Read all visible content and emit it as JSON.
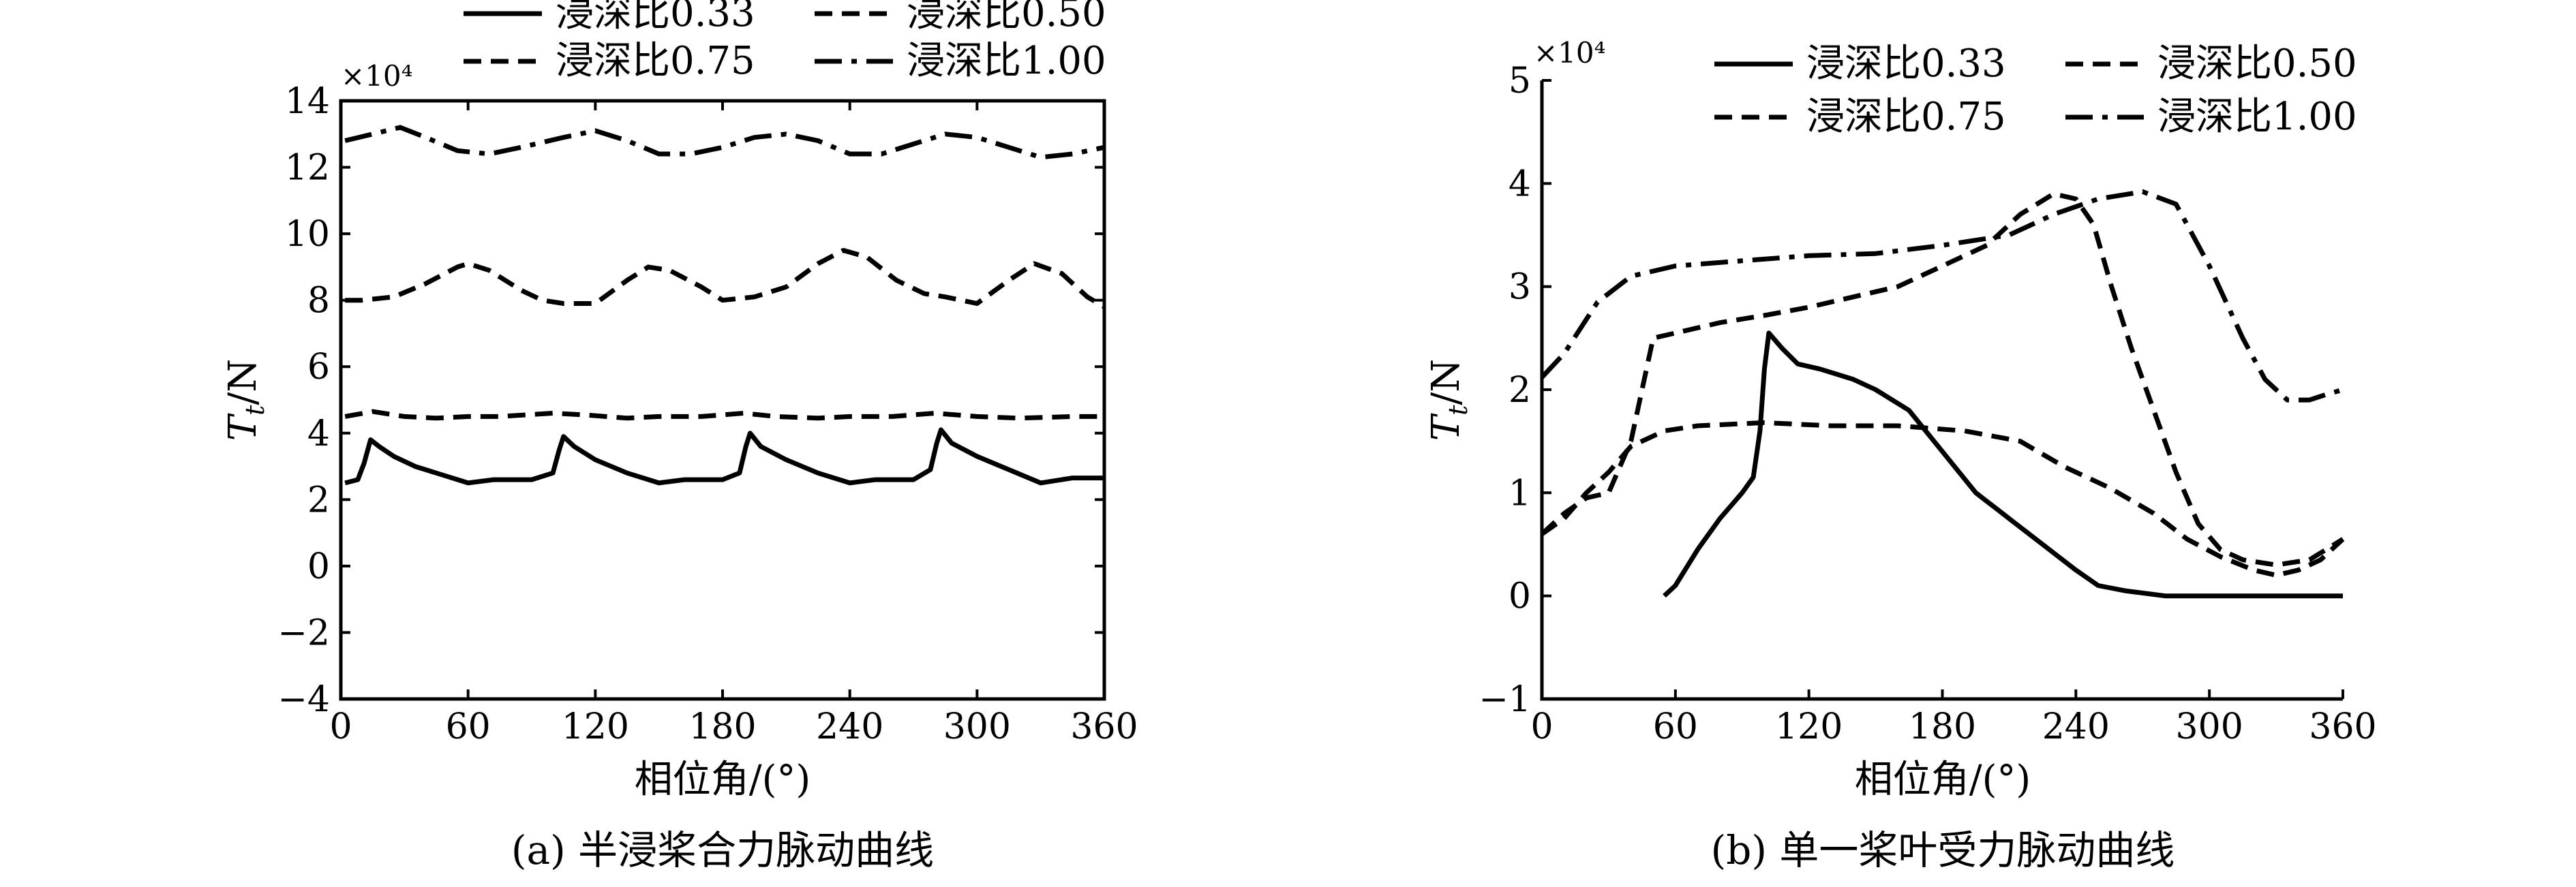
{
  "chart_data": [
    {
      "type": "line",
      "caption": "(a) 半浸桨合力脉动曲线",
      "xlabel": "相位角/(°)",
      "ylabel_main": "T",
      "ylabel_sub": "t",
      "ylabel_unit": "/N",
      "exponent": "×10⁴",
      "xlim": [
        0,
        360
      ],
      "ylim": [
        -4,
        14
      ],
      "xticks": [
        "0",
        "60",
        "120",
        "180",
        "240",
        "300",
        "360"
      ],
      "yticks": [
        "−4",
        "−2",
        "0",
        "2",
        "4",
        "6",
        "8",
        "10",
        "12",
        "14"
      ],
      "legend_position": "top",
      "series": [
        {
          "name": "浸深比0.33",
          "style": "solid",
          "points": [
            [
              2,
              2.5
            ],
            [
              8,
              2.6
            ],
            [
              11,
              3.1
            ],
            [
              14,
              3.8
            ],
            [
              18,
              3.6
            ],
            [
              25,
              3.3
            ],
            [
              35,
              3.0
            ],
            [
              50,
              2.7
            ],
            [
              60,
              2.5
            ],
            [
              72,
              2.6
            ],
            [
              90,
              2.6
            ],
            [
              100,
              2.8
            ],
            [
              103,
              3.5
            ],
            [
              105,
              3.9
            ],
            [
              110,
              3.6
            ],
            [
              120,
              3.2
            ],
            [
              135,
              2.8
            ],
            [
              150,
              2.5
            ],
            [
              162,
              2.6
            ],
            [
              180,
              2.6
            ],
            [
              188,
              2.8
            ],
            [
              191,
              3.6
            ],
            [
              193,
              4.0
            ],
            [
              198,
              3.6
            ],
            [
              210,
              3.2
            ],
            [
              225,
              2.8
            ],
            [
              240,
              2.5
            ],
            [
              252,
              2.6
            ],
            [
              270,
              2.6
            ],
            [
              278,
              2.9
            ],
            [
              281,
              3.7
            ],
            [
              283,
              4.1
            ],
            [
              288,
              3.7
            ],
            [
              300,
              3.3
            ],
            [
              315,
              2.9
            ],
            [
              330,
              2.5
            ],
            [
              345,
              2.65
            ],
            [
              360,
              2.65
            ]
          ]
        },
        {
          "name": "浸深比0.50",
          "style": "dashed",
          "points": [
            [
              2,
              4.5
            ],
            [
              15,
              4.65
            ],
            [
              30,
              4.5
            ],
            [
              45,
              4.45
            ],
            [
              60,
              4.5
            ],
            [
              75,
              4.5
            ],
            [
              100,
              4.6
            ],
            [
              115,
              4.55
            ],
            [
              135,
              4.45
            ],
            [
              150,
              4.5
            ],
            [
              170,
              4.5
            ],
            [
              190,
              4.6
            ],
            [
              205,
              4.5
            ],
            [
              225,
              4.45
            ],
            [
              240,
              4.5
            ],
            [
              260,
              4.5
            ],
            [
              280,
              4.6
            ],
            [
              300,
              4.5
            ],
            [
              320,
              4.45
            ],
            [
              345,
              4.5
            ],
            [
              360,
              4.5
            ]
          ]
        },
        {
          "name": "浸深比0.75",
          "style": "dashed",
          "points": [
            [
              2,
              8.0
            ],
            [
              10,
              8.0
            ],
            [
              25,
              8.1
            ],
            [
              40,
              8.5
            ],
            [
              55,
              9.0
            ],
            [
              60,
              9.1
            ],
            [
              70,
              8.9
            ],
            [
              85,
              8.3
            ],
            [
              95,
              8.0
            ],
            [
              105,
              7.9
            ],
            [
              120,
              7.9
            ],
            [
              135,
              8.6
            ],
            [
              145,
              9.0
            ],
            [
              155,
              8.9
            ],
            [
              170,
              8.4
            ],
            [
              180,
              8.0
            ],
            [
              195,
              8.1
            ],
            [
              210,
              8.4
            ],
            [
              225,
              9.1
            ],
            [
              237,
              9.5
            ],
            [
              248,
              9.3
            ],
            [
              262,
              8.6
            ],
            [
              275,
              8.2
            ],
            [
              285,
              8.1
            ],
            [
              300,
              7.9
            ],
            [
              315,
              8.6
            ],
            [
              327,
              9.1
            ],
            [
              340,
              8.8
            ],
            [
              352,
              8.1
            ],
            [
              360,
              7.8
            ]
          ]
        },
        {
          "name": "浸深比1.00",
          "style": "dash-dot",
          "points": [
            [
              2,
              12.8
            ],
            [
              15,
              13.0
            ],
            [
              28,
              13.2
            ],
            [
              40,
              12.9
            ],
            [
              55,
              12.5
            ],
            [
              70,
              12.4
            ],
            [
              85,
              12.6
            ],
            [
              105,
              12.9
            ],
            [
              120,
              13.1
            ],
            [
              135,
              12.8
            ],
            [
              150,
              12.4
            ],
            [
              165,
              12.4
            ],
            [
              180,
              12.6
            ],
            [
              195,
              12.9
            ],
            [
              210,
              13.0
            ],
            [
              225,
              12.8
            ],
            [
              240,
              12.4
            ],
            [
              255,
              12.4
            ],
            [
              270,
              12.7
            ],
            [
              285,
              13.0
            ],
            [
              300,
              12.9
            ],
            [
              315,
              12.6
            ],
            [
              330,
              12.3
            ],
            [
              345,
              12.4
            ],
            [
              360,
              12.6
            ]
          ]
        }
      ]
    },
    {
      "type": "line",
      "caption": "(b) 单一桨叶受力脉动曲线",
      "xlabel": "相位角/(°)",
      "ylabel_main": "T",
      "ylabel_sub": "t",
      "ylabel_unit": "/N",
      "exponent": "×10⁴",
      "xlim": [
        0,
        360
      ],
      "ylim": [
        -1,
        5
      ],
      "xticks": [
        "0",
        "60",
        "120",
        "180",
        "240",
        "300",
        "360"
      ],
      "yticks": [
        "−1",
        "0",
        "1",
        "2",
        "3",
        "4",
        "5"
      ],
      "legend_position": "top-right",
      "series": [
        {
          "name": "浸深比0.33",
          "style": "solid",
          "points": [
            [
              55,
              0.0
            ],
            [
              60,
              0.1
            ],
            [
              70,
              0.45
            ],
            [
              80,
              0.75
            ],
            [
              90,
              1.0
            ],
            [
              95,
              1.15
            ],
            [
              98,
              1.6
            ],
            [
              100,
              2.2
            ],
            [
              102,
              2.55
            ],
            [
              108,
              2.4
            ],
            [
              115,
              2.25
            ],
            [
              125,
              2.2
            ],
            [
              140,
              2.1
            ],
            [
              150,
              2.0
            ],
            [
              165,
              1.8
            ],
            [
              180,
              1.4
            ],
            [
              195,
              1.0
            ],
            [
              210,
              0.75
            ],
            [
              225,
              0.5
            ],
            [
              240,
              0.25
            ],
            [
              250,
              0.1
            ],
            [
              262,
              0.05
            ],
            [
              280,
              0.0
            ],
            [
              300,
              0.0
            ],
            [
              330,
              0.0
            ],
            [
              360,
              0.0
            ]
          ]
        },
        {
          "name": "浸深比0.50",
          "style": "dashed",
          "points": [
            [
              0,
              0.6
            ],
            [
              10,
              0.75
            ],
            [
              20,
              1.0
            ],
            [
              30,
              1.2
            ],
            [
              40,
              1.45
            ],
            [
              55,
              1.6
            ],
            [
              70,
              1.65
            ],
            [
              100,
              1.68
            ],
            [
              130,
              1.65
            ],
            [
              160,
              1.65
            ],
            [
              190,
              1.6
            ],
            [
              215,
              1.5
            ],
            [
              235,
              1.25
            ],
            [
              255,
              1.05
            ],
            [
              275,
              0.8
            ],
            [
              290,
              0.55
            ],
            [
              305,
              0.38
            ],
            [
              320,
              0.25
            ],
            [
              330,
              0.2
            ],
            [
              340,
              0.25
            ],
            [
              350,
              0.35
            ],
            [
              360,
              0.55
            ]
          ]
        },
        {
          "name": "浸深比0.75",
          "style": "dashed",
          "points": [
            [
              0,
              0.6
            ],
            [
              10,
              0.8
            ],
            [
              20,
              0.95
            ],
            [
              30,
              1.0
            ],
            [
              40,
              1.5
            ],
            [
              50,
              2.5
            ],
            [
              60,
              2.55
            ],
            [
              80,
              2.65
            ],
            [
              100,
              2.72
            ],
            [
              120,
              2.8
            ],
            [
              140,
              2.9
            ],
            [
              160,
              3.0
            ],
            [
              180,
              3.2
            ],
            [
              200,
              3.4
            ],
            [
              215,
              3.7
            ],
            [
              230,
              3.9
            ],
            [
              240,
              3.85
            ],
            [
              248,
              3.6
            ],
            [
              256,
              3.0
            ],
            [
              265,
              2.4
            ],
            [
              275,
              1.8
            ],
            [
              285,
              1.2
            ],
            [
              295,
              0.7
            ],
            [
              305,
              0.45
            ],
            [
              315,
              0.35
            ],
            [
              330,
              0.3
            ],
            [
              345,
              0.35
            ],
            [
              360,
              0.55
            ]
          ]
        },
        {
          "name": "浸深比1.00",
          "style": "dash-dot",
          "points": [
            [
              0,
              2.12
            ],
            [
              10,
              2.35
            ],
            [
              25,
              2.85
            ],
            [
              40,
              3.1
            ],
            [
              60,
              3.2
            ],
            [
              90,
              3.25
            ],
            [
              120,
              3.3
            ],
            [
              150,
              3.32
            ],
            [
              180,
              3.4
            ],
            [
              210,
              3.5
            ],
            [
              230,
              3.7
            ],
            [
              250,
              3.85
            ],
            [
              270,
              3.92
            ],
            [
              285,
              3.8
            ],
            [
              300,
              3.2
            ],
            [
              315,
              2.5
            ],
            [
              325,
              2.1
            ],
            [
              335,
              1.9
            ],
            [
              345,
              1.9
            ],
            [
              352,
              1.95
            ],
            [
              360,
              2.0
            ]
          ]
        }
      ]
    }
  ]
}
